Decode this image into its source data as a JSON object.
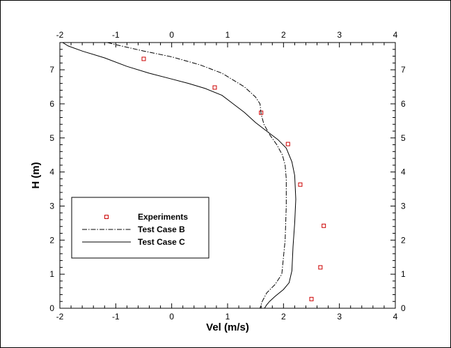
{
  "chart_data": {
    "type": "scatter",
    "title": "",
    "xlabel": "Vel (m/s)",
    "ylabel": "H (m)",
    "xlim": [
      -2,
      4
    ],
    "ylim": [
      0,
      7.8
    ],
    "x_ticks": [
      -2,
      -1,
      0,
      1,
      2,
      3,
      4
    ],
    "y_ticks": [
      0,
      1,
      2,
      3,
      4,
      5,
      6,
      7
    ],
    "grid": false,
    "mirror_axes": true,
    "legend_position": "lower-left",
    "series": [
      {
        "name": "Experiments",
        "kind": "marker",
        "marker": "square",
        "color": "#cc0000",
        "x": [
          -0.5,
          0.77,
          1.6,
          2.08,
          2.3,
          2.72,
          2.66,
          2.5
        ],
        "y": [
          7.32,
          6.48,
          5.74,
          4.82,
          3.63,
          2.42,
          1.2,
          0.27
        ]
      },
      {
        "name": "Test Case B",
        "kind": "line",
        "dash": "dash-dot",
        "color": "#000000",
        "x": [
          -1.15,
          -0.9,
          -0.5,
          0.0,
          0.5,
          0.9,
          1.3,
          1.5,
          1.58,
          1.6,
          1.65,
          1.75,
          1.88,
          1.98,
          2.03,
          2.05,
          2.05,
          2.03,
          1.97,
          1.85,
          1.7,
          1.62,
          1.58
        ],
        "y": [
          7.8,
          7.7,
          7.55,
          7.38,
          7.15,
          6.9,
          6.5,
          6.2,
          6.0,
          5.7,
          5.4,
          5.1,
          4.8,
          4.5,
          4.2,
          3.8,
          3.0,
          2.0,
          1.0,
          0.7,
          0.45,
          0.2,
          0.0
        ]
      },
      {
        "name": "Test Case C",
        "kind": "line",
        "dash": "solid",
        "color": "#000000",
        "x": [
          -1.95,
          -1.85,
          -1.6,
          -1.2,
          -0.8,
          -0.4,
          0.0,
          0.3,
          0.6,
          0.9,
          1.1,
          1.3,
          1.5,
          1.7,
          1.9,
          2.05,
          2.15,
          2.2,
          2.22,
          2.2,
          2.17,
          2.15,
          2.1,
          2.0,
          1.85,
          1.75,
          1.7,
          1.66
        ],
        "y": [
          7.8,
          7.7,
          7.55,
          7.35,
          7.1,
          6.9,
          6.73,
          6.6,
          6.45,
          6.25,
          6.0,
          5.75,
          5.45,
          5.2,
          4.95,
          4.7,
          4.3,
          3.9,
          3.2,
          2.5,
          1.8,
          1.1,
          0.75,
          0.55,
          0.35,
          0.2,
          0.1,
          0.0
        ]
      }
    ]
  }
}
